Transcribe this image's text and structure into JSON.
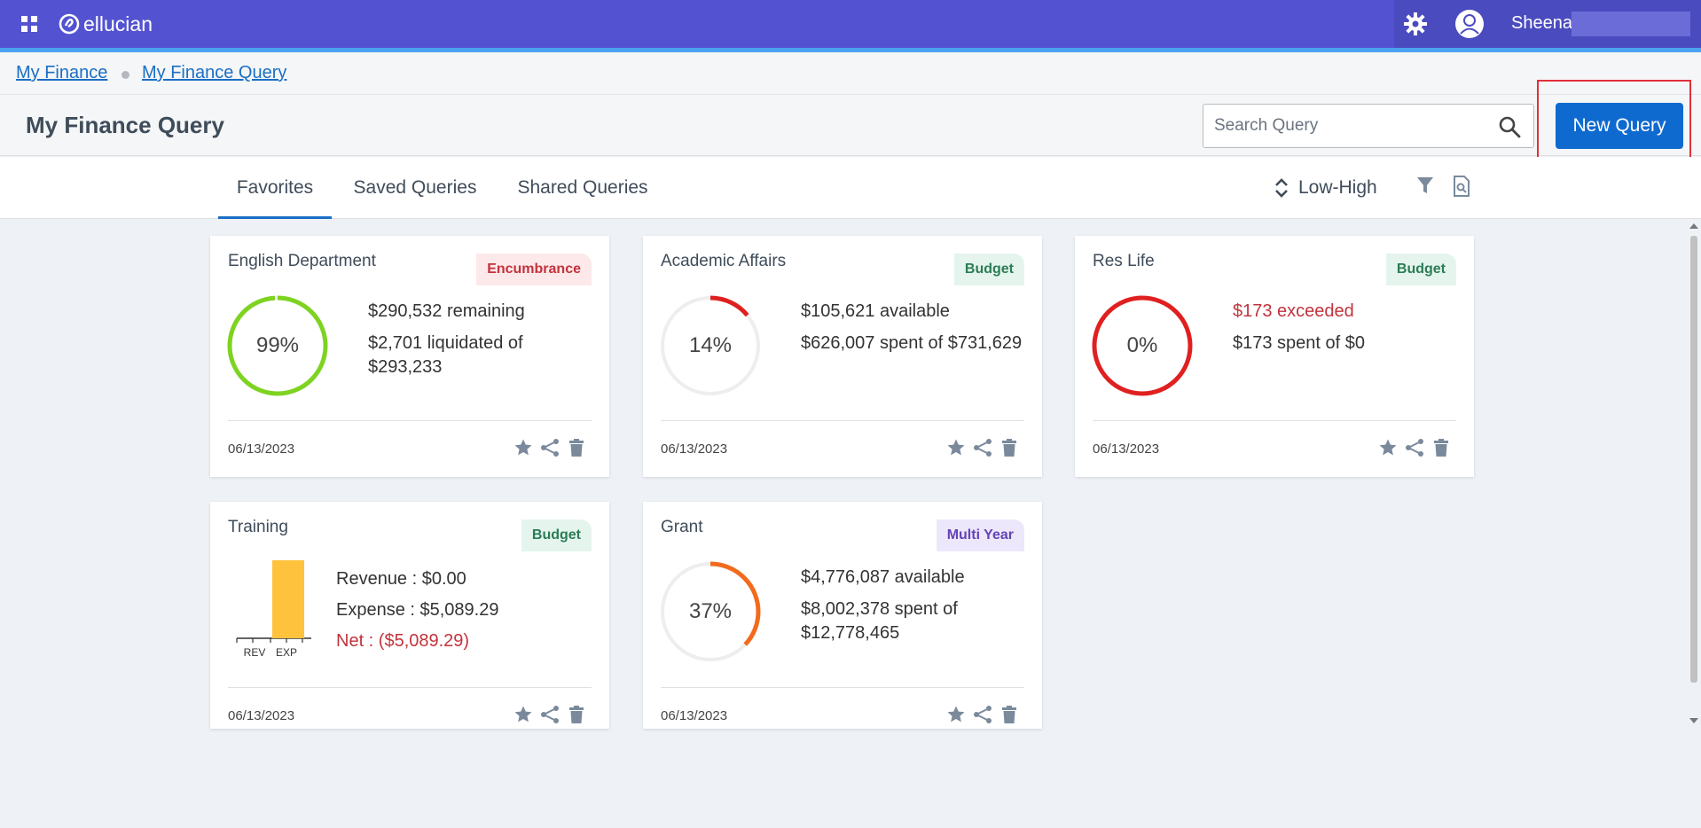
{
  "topbar": {
    "brand": "ellucian",
    "user_name": "Sheena",
    "colors": {
      "bar": "#5353d1",
      "accent": "#4aa3f0"
    },
    "icons": [
      "apps-grid-icon",
      "gear-icon",
      "user-avatar-icon"
    ]
  },
  "breadcrumb": {
    "items": [
      {
        "label": "My Finance"
      },
      {
        "label": "My Finance Query"
      }
    ]
  },
  "header": {
    "title": "My Finance Query",
    "search_placeholder": "Search Query",
    "search_value": "",
    "new_query_label": "New Query"
  },
  "tabs": [
    {
      "label": "Favorites",
      "active": true
    },
    {
      "label": "Saved Queries",
      "active": false
    },
    {
      "label": "Shared Queries",
      "active": false
    }
  ],
  "sort": {
    "label": "Low-High"
  },
  "cards": [
    {
      "title": "English Department",
      "badge": "Encumbrance",
      "percent_label": "99%",
      "percent": 99,
      "ring_color": "#7ed321",
      "line1": "$290,532 remaining",
      "line2": "$2,701 liquidated of $293,233",
      "date": "06/13/2023"
    },
    {
      "title": "Academic Affairs",
      "badge": "Budget",
      "percent_label": "14%",
      "percent": 14,
      "ring_color": "#e02020",
      "line1": "$105,621 available",
      "line2": "$626,007 spent of $731,629",
      "date": "06/13/2023"
    },
    {
      "title": "Res Life",
      "badge": "Budget",
      "percent_label": "0%",
      "percent": 100,
      "ring_color": "#e02020",
      "line1": "$173 exceeded",
      "line2": "$173 spent of $0",
      "date": "06/13/2023"
    },
    {
      "title": "Training",
      "badge": "Budget",
      "revenue": "Revenue : $0.00",
      "expense": "Expense : $5,089.29",
      "net": "Net : ($5,089.29)",
      "chart_categories": [
        "REV",
        "EXP"
      ],
      "chart_values": [
        0,
        5089.29
      ],
      "bar_color": "#ffc23d",
      "date": "06/13/2023"
    },
    {
      "title": "Grant",
      "badge": "Multi Year",
      "percent_label": "37%",
      "percent": 37,
      "ring_color": "#f26b1d",
      "line1": "$4,776,087 available",
      "line2": "$8,002,378 spent of $12,778,465",
      "date": "06/13/2023"
    }
  ]
}
